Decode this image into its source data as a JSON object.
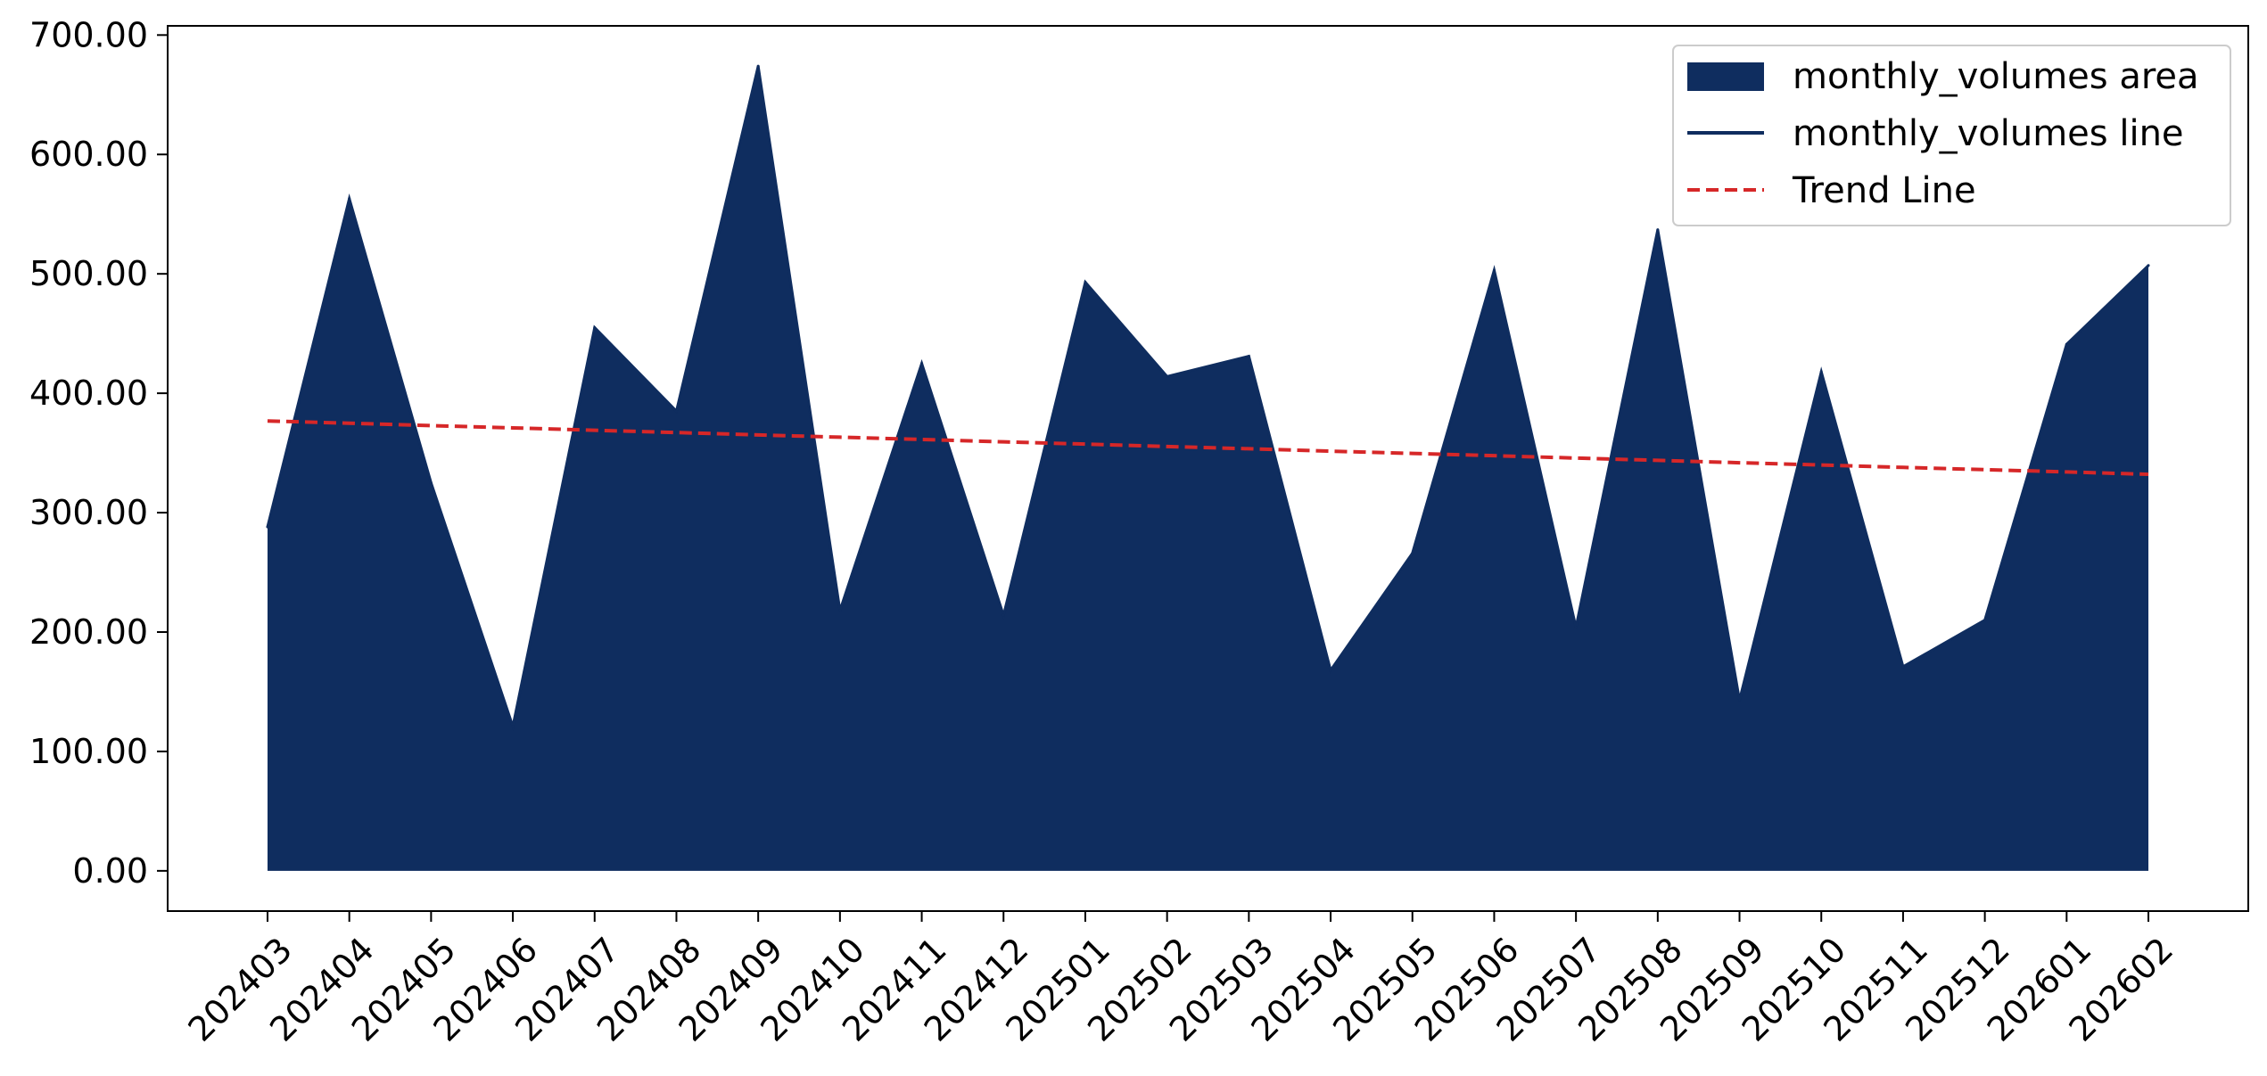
{
  "chart_data": {
    "type": "area",
    "title": "",
    "xlabel": "",
    "ylabel": "",
    "categories": [
      "202403",
      "202404",
      "202405",
      "202406",
      "202407",
      "202408",
      "202409",
      "202410",
      "202411",
      "202412",
      "202501",
      "202502",
      "202503",
      "202504",
      "202505",
      "202506",
      "202507",
      "202508",
      "202509",
      "202510",
      "202511",
      "202512",
      "202601",
      "202602"
    ],
    "series": [
      {
        "name": "monthly_volumes area",
        "kind": "area",
        "color": "#0f2d5f",
        "values": [
          288,
          563,
          325,
          121,
          455,
          385,
          674,
          218,
          425,
          214,
          493,
          414,
          431,
          168,
          266,
          503,
          204,
          537,
          143,
          418,
          171,
          210,
          441,
          507
        ]
      },
      {
        "name": "monthly_volumes line",
        "kind": "line",
        "color": "#0f2d5f",
        "values": [
          288,
          563,
          325,
          121,
          455,
          385,
          674,
          218,
          425,
          214,
          493,
          414,
          431,
          168,
          266,
          503,
          204,
          537,
          143,
          418,
          171,
          210,
          441,
          507
        ]
      },
      {
        "name": "Trend Line",
        "kind": "trend",
        "color": "#d62728",
        "values": [
          376.8,
          374.9,
          372.9,
          371.0,
          369.0,
          367.1,
          365.1,
          363.2,
          361.3,
          359.3,
          357.4,
          355.4,
          353.5,
          351.5,
          349.6,
          347.7,
          345.7,
          343.8,
          341.8,
          339.9,
          337.9,
          336.0,
          334.1,
          332.1
        ]
      }
    ],
    "ylim": [
      -33.7,
      707.7
    ],
    "yticks": [
      "0.00",
      "100.00",
      "200.00",
      "300.00",
      "400.00",
      "500.00",
      "600.00",
      "700.00"
    ],
    "ytick_values": [
      0,
      100,
      200,
      300,
      400,
      500,
      600,
      700
    ],
    "grid": false,
    "legend": "top-right"
  }
}
